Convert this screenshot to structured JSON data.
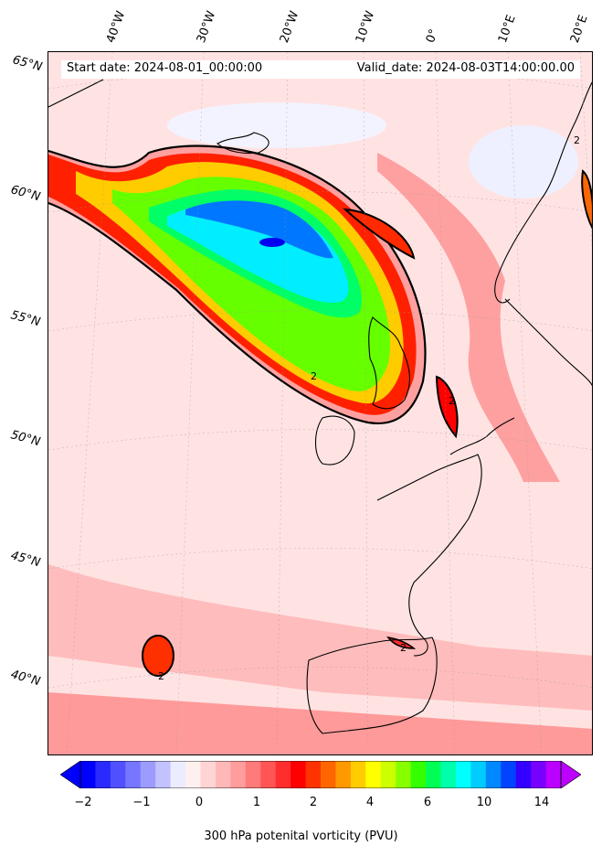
{
  "header": {
    "start_date": "Start date: 2024-08-01_00:00:00",
    "valid_date": "Valid_date: 2024-08-03T14:00:00.00"
  },
  "latitude_labels": [
    "65°N",
    "60°N",
    "55°N",
    "50°N",
    "45°N",
    "40°N"
  ],
  "longitude_labels": [
    "40°W",
    "30°W",
    "20°W",
    "10°W",
    "0°",
    "10°E",
    "20°E"
  ],
  "contour_label": "2",
  "colorbar": {
    "label": "300 hPa potenital vorticity (PVU)",
    "ticks": [
      "−2",
      "−1",
      "0",
      "1",
      "2",
      "4",
      "6",
      "10",
      "14"
    ],
    "colors": [
      "#0000ff",
      "#2a2aff",
      "#5050ff",
      "#7676ff",
      "#9c9cff",
      "#c2c2ff",
      "#ececff",
      "#fff0f0",
      "#ffd4d4",
      "#ffb8b8",
      "#ff9c9c",
      "#ff7a7a",
      "#ff5555",
      "#ff2e2e",
      "#ff0000",
      "#ff3300",
      "#ff6600",
      "#ff9900",
      "#ffcc00",
      "#ffff00",
      "#ccff00",
      "#88ff00",
      "#33ff00",
      "#00ff55",
      "#00ffaa",
      "#00ffff",
      "#00ccff",
      "#0088ff",
      "#0044ff",
      "#3300ff",
      "#7700ff",
      "#bb00ff"
    ]
  },
  "map": {
    "ocean_color": "#ffe0e0",
    "high_pv_colors": [
      "#ffa0a0",
      "#ff4040",
      "#ff2000",
      "#ffcc00",
      "#00ff00",
      "#00ffff",
      "#0077ff",
      "#0000ee"
    ]
  }
}
